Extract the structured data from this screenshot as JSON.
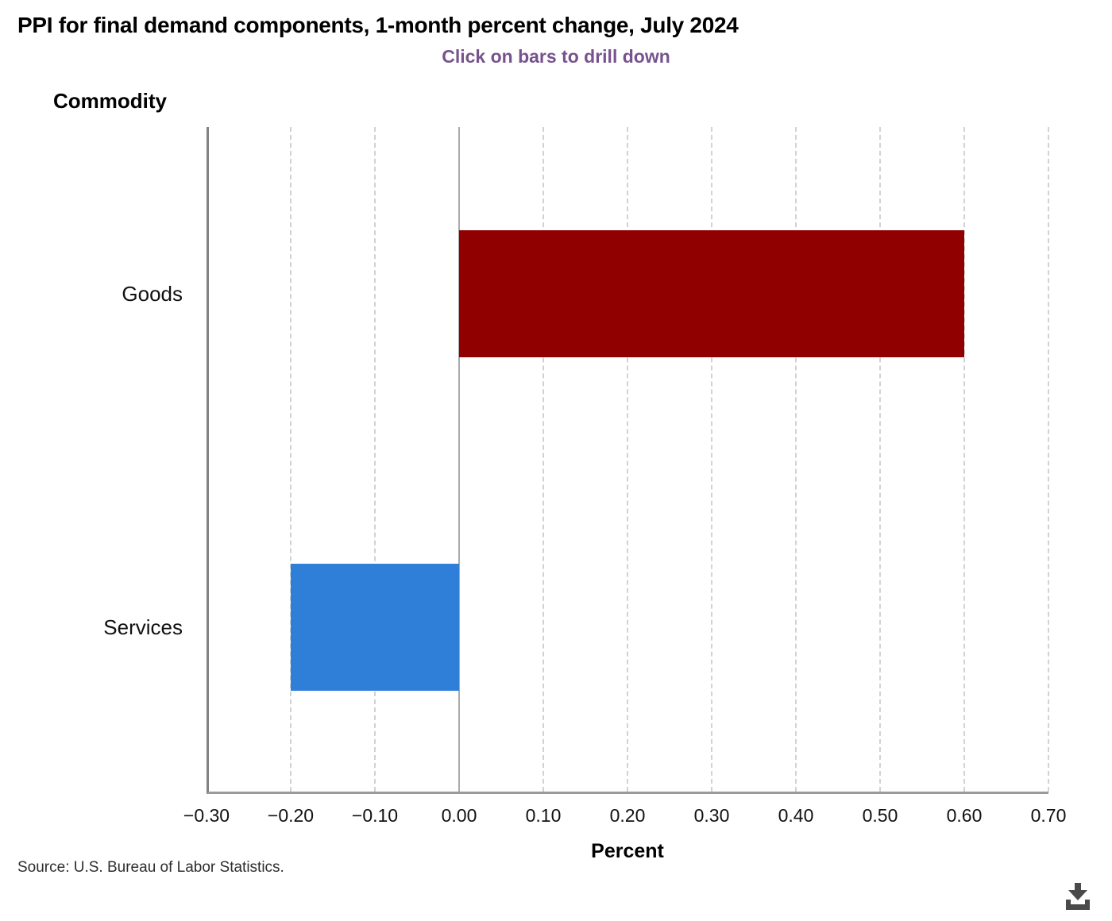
{
  "chart": {
    "title": "PPI for final demand components, 1-month percent change, July 2024",
    "subtitle": "Click on bars to drill down",
    "y_axis_title": "Commodity",
    "x_axis_title": "Percent",
    "source": "Source: U.S. Bureau of Labor Statistics.",
    "colors": {
      "subtitle": "#76538E",
      "goods_bar": "#910000",
      "services_bar": "#2f7ed8",
      "axis_line": "#828282",
      "zero_line": "#ababab",
      "gridline": "#d2d2d2",
      "download_icon": "#4a4a4a"
    }
  },
  "chart_data": {
    "type": "bar",
    "orientation": "horizontal",
    "title": "PPI for final demand components, 1-month percent change, July 2024",
    "subtitle": "Click on bars to drill down",
    "xlabel": "Percent",
    "ylabel": "Commodity",
    "categories": [
      "Goods",
      "Services"
    ],
    "values": [
      0.6,
      -0.2
    ],
    "bar_colors": [
      "#910000",
      "#2f7ed8"
    ],
    "xlim": [
      -0.3,
      0.7
    ],
    "grid": "vertical dashed, solid zero line, no legend",
    "legend": "none",
    "ticks": [
      {
        "value": -0.3,
        "label": "−0.30"
      },
      {
        "value": -0.2,
        "label": "−0.20"
      },
      {
        "value": -0.1,
        "label": "−0.10"
      },
      {
        "value": 0.0,
        "label": "0.00"
      },
      {
        "value": 0.1,
        "label": "0.10"
      },
      {
        "value": 0.2,
        "label": "0.20"
      },
      {
        "value": 0.3,
        "label": "0.30"
      },
      {
        "value": 0.4,
        "label": "0.40"
      },
      {
        "value": 0.5,
        "label": "0.50"
      },
      {
        "value": 0.6,
        "label": "0.60"
      },
      {
        "value": 0.7,
        "label": "0.70"
      }
    ]
  }
}
